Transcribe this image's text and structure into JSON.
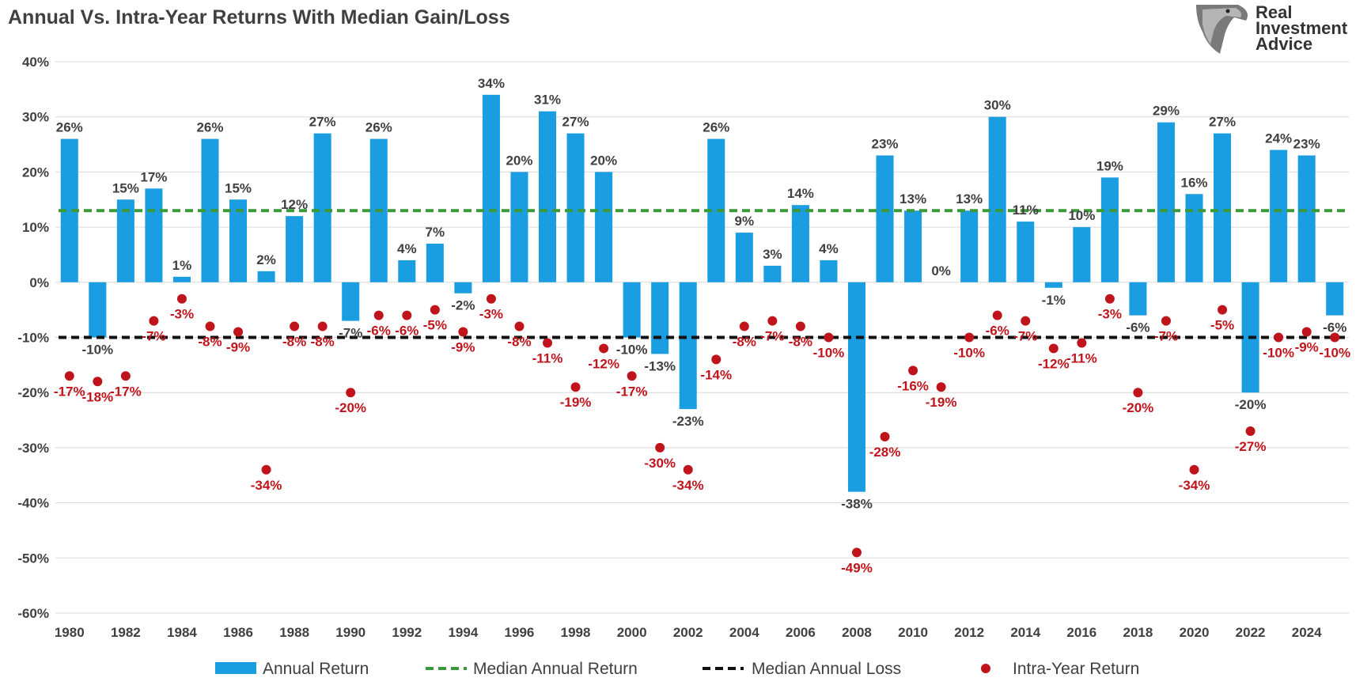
{
  "colors": {
    "bar": "#1b9de2",
    "median_gain": "#3a9a3a",
    "median_loss": "#111111",
    "dot": "#c0141c",
    "dot_label": "#c0141c",
    "bar_label": "#404040",
    "grid": "#d9d9d9",
    "text": "#404040"
  },
  "logo": {
    "line1": "Real",
    "line2": "Investment",
    "line3": "Advice",
    "icon": "eagle-head-icon"
  },
  "chart_data": {
    "type": "bar",
    "title": "Annual Vs. Intra-Year Returns With Median Gain/Loss",
    "xlabel": "",
    "ylabel": "",
    "ylim": [
      -60,
      40
    ],
    "yticks": [
      40,
      30,
      20,
      10,
      0,
      -10,
      -20,
      -30,
      -40,
      -50,
      -60
    ],
    "ytick_labels": [
      "40%",
      "30%",
      "20%",
      "10%",
      "0%",
      "-10%",
      "-20%",
      "-30%",
      "-40%",
      "-50%",
      "-60%"
    ],
    "grid": true,
    "legend_position": "bottom",
    "categories": [
      1980,
      1981,
      1982,
      1983,
      1984,
      1985,
      1986,
      1987,
      1988,
      1989,
      1990,
      1991,
      1992,
      1993,
      1994,
      1995,
      1996,
      1997,
      1998,
      1999,
      2000,
      2001,
      2002,
      2003,
      2004,
      2005,
      2006,
      2007,
      2008,
      2009,
      2010,
      2011,
      2012,
      2013,
      2014,
      2015,
      2016,
      2017,
      2018,
      2019,
      2020,
      2021,
      2022,
      2023,
      2024,
      2025
    ],
    "xtick_labels": [
      "1980",
      "1982",
      "1984",
      "1986",
      "1988",
      "1990",
      "1992",
      "1994",
      "1996",
      "1998",
      "2000",
      "2002",
      "2004",
      "2006",
      "2008",
      "2010",
      "2012",
      "2014",
      "2016",
      "2018",
      "2020",
      "2022",
      "2024"
    ],
    "series": [
      {
        "name": "Annual Return",
        "kind": "bar",
        "values": [
          26,
          -10,
          15,
          17,
          1,
          26,
          15,
          2,
          12,
          27,
          -7,
          26,
          4,
          7,
          -2,
          34,
          20,
          31,
          27,
          20,
          -10,
          -13,
          -23,
          26,
          9,
          3,
          14,
          4,
          -38,
          23,
          13,
          0,
          13,
          30,
          11,
          -1,
          10,
          19,
          -6,
          29,
          16,
          27,
          -20,
          24,
          23,
          -6
        ],
        "labels": [
          "26%",
          "-10%",
          "15%",
          "17%",
          "1%",
          "26%",
          "15%",
          "2%",
          "12%",
          "27%",
          "-7%",
          "26%",
          "4%",
          "7%",
          "-2%",
          "34%",
          "20%",
          "31%",
          "27%",
          "20%",
          "-10%",
          "-13%",
          "-23%",
          "26%",
          "9%",
          "3%",
          "14%",
          "4%",
          "-38%",
          "23%",
          "13%",
          "0%",
          "13%",
          "30%",
          "11%",
          "-1%",
          "10%",
          "19%",
          "-6%",
          "29%",
          "16%",
          "27%",
          "-20%",
          "24%",
          "23%",
          "-6%"
        ]
      },
      {
        "name": "Intra-Year Return",
        "kind": "scatter",
        "values": [
          -17,
          -18,
          -17,
          -7,
          -3,
          -8,
          -9,
          -34,
          -8,
          -8,
          -20,
          -6,
          -6,
          -5,
          -9,
          -3,
          -8,
          -11,
          -19,
          -12,
          -17,
          -30,
          -34,
          -14,
          -8,
          -7,
          -8,
          -10,
          -49,
          -28,
          -16,
          -19,
          -10,
          -6,
          -7,
          -12,
          -11,
          -3,
          -20,
          -7,
          -34,
          -5,
          -27,
          -10,
          -9,
          -10
        ],
        "labels": [
          "-17%",
          "-18%",
          "-17%",
          "-7%",
          "-3%",
          "-8%",
          "-9%",
          "-34%",
          "-8%",
          "-8%",
          "-20%",
          "-6%",
          "-6%",
          "-5%",
          "-9%",
          "-3%",
          "-8%",
          "-11%",
          "-19%",
          "-12%",
          "-17%",
          "-30%",
          "-34%",
          "-14%",
          "-8%",
          "-7%",
          "-8%",
          "-10%",
          "-49%",
          "-28%",
          "-16%",
          "-19%",
          "-10%",
          "-6%",
          "-7%",
          "-12%",
          "-11%",
          "-3%",
          "-20%",
          "-7%",
          "-34%",
          "-5%",
          "-27%",
          "-10%",
          "-9%",
          "-10%"
        ]
      },
      {
        "name": "Median Annual Return",
        "kind": "hline",
        "value": 13
      },
      {
        "name": "Median Annual Loss",
        "kind": "hline",
        "value": -10
      }
    ],
    "legend": [
      "Annual Return",
      "Median Annual Return",
      "Median Annual Loss",
      "Intra-Year Return"
    ]
  }
}
